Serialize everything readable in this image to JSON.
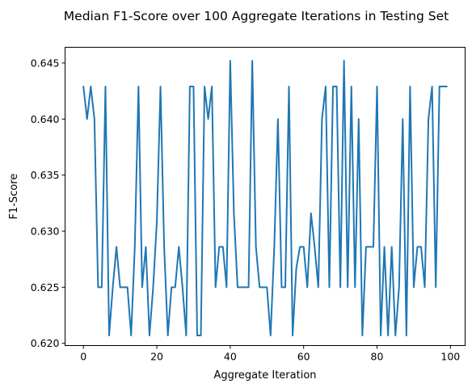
{
  "chart_data": {
    "type": "line",
    "title": "Median F1-Score over 100 Aggregate Iterations in Testing Set",
    "xlabel": "Aggregate Iteration",
    "ylabel": "F1-Score",
    "xlim": [
      -5,
      104
    ],
    "ylim": [
      0.6198,
      0.6464
    ],
    "xticks": [
      0,
      20,
      40,
      60,
      80,
      100
    ],
    "xtick_labels": [
      "0",
      "20",
      "40",
      "60",
      "80",
      "100"
    ],
    "yticks": [
      0.62,
      0.625,
      0.63,
      0.635,
      0.64,
      0.645
    ],
    "ytick_labels": [
      "0.620",
      "0.625",
      "0.630",
      "0.635",
      "0.640",
      "0.645"
    ],
    "grid": false,
    "legend": "none",
    "color": "#1f77b4",
    "series": [
      {
        "x": [
          0,
          1,
          2,
          3,
          4,
          5,
          6,
          7,
          8,
          9,
          10,
          11,
          12,
          13,
          14,
          15,
          16,
          17,
          18,
          19,
          20,
          21,
          22,
          23,
          24,
          25,
          26,
          27,
          28,
          29,
          30,
          31,
          32,
          33,
          34,
          35,
          36,
          37,
          38,
          39,
          40,
          41,
          42,
          43,
          44,
          45,
          46,
          47,
          48,
          49,
          50,
          51,
          52,
          53,
          54,
          55,
          56,
          57,
          58,
          59,
          60,
          61,
          62,
          63,
          64,
          65,
          66,
          67,
          68,
          69,
          70,
          71,
          72,
          73,
          74,
          75,
          76,
          77,
          78,
          79,
          80,
          81,
          82,
          83,
          84,
          85,
          86,
          87,
          88,
          89,
          90,
          91,
          92,
          93,
          94,
          95,
          96,
          97,
          98,
          99
        ],
        "values": [
          0.6429,
          0.64,
          0.6429,
          0.64,
          0.625,
          0.625,
          0.6429,
          0.6207,
          0.625,
          0.6286,
          0.625,
          0.625,
          0.625,
          0.6207,
          0.6286,
          0.6429,
          0.625,
          0.6286,
          0.6207,
          0.625,
          0.6308,
          0.6429,
          0.6286,
          0.6207,
          0.625,
          0.625,
          0.6286,
          0.625,
          0.6207,
          0.6429,
          0.6429,
          0.6207,
          0.6207,
          0.6429,
          0.64,
          0.6429,
          0.625,
          0.6286,
          0.6286,
          0.625,
          0.6452,
          0.6316,
          0.625,
          0.625,
          0.625,
          0.625,
          0.6452,
          0.6286,
          0.625,
          0.625,
          0.625,
          0.6207,
          0.6286,
          0.64,
          0.625,
          0.625,
          0.6429,
          0.6207,
          0.6267,
          0.6286,
          0.6286,
          0.625,
          0.6316,
          0.6286,
          0.625,
          0.64,
          0.6429,
          0.625,
          0.6429,
          0.6429,
          0.625,
          0.6452,
          0.625,
          0.6429,
          0.625,
          0.64,
          0.6207,
          0.6286,
          0.6286,
          0.6286,
          0.6429,
          0.6207,
          0.6286,
          0.6207,
          0.6286,
          0.6207,
          0.625,
          0.64,
          0.6207,
          0.6429,
          0.625,
          0.6286,
          0.6286,
          0.625,
          0.64,
          0.6429,
          0.625,
          0.6429,
          0.6429,
          0.6429
        ]
      }
    ]
  }
}
